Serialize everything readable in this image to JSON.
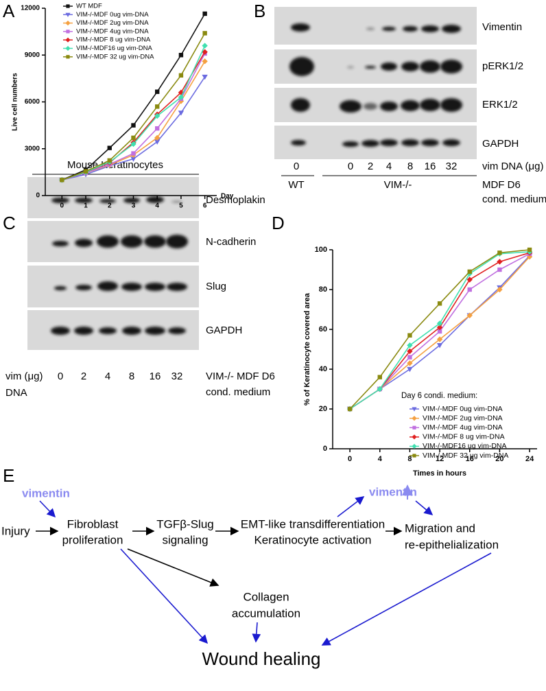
{
  "panel_labels": [
    "A",
    "B",
    "C",
    "D",
    "E"
  ],
  "chart_data": [
    {
      "type": "line",
      "ylabel": "Live cell numbers",
      "xlabel": "Day",
      "x": [
        0,
        1,
        2,
        3,
        4,
        5,
        6
      ],
      "xlim": [
        -0.7,
        6.5
      ],
      "xticks": [
        0,
        1,
        2,
        3,
        4,
        5,
        6
      ],
      "ylim": [
        0,
        12000
      ],
      "yticks": [
        0,
        3000,
        6000,
        9000,
        12000
      ],
      "series": [
        {
          "name": "WT MDF",
          "color": "#111111",
          "marker": "square",
          "values": [
            1000,
            1650,
            3050,
            4500,
            6650,
            9000,
            11650
          ]
        },
        {
          "name": "VIM-/-MDF 0ug vim-DNA",
          "color": "#6b6be0",
          "marker": "triangle-down",
          "values": [
            1000,
            1350,
            1900,
            2350,
            3450,
            5300,
            7600
          ]
        },
        {
          "name": "VIM-/-MDF 2ug vim-DNA",
          "color": "#f5a040",
          "marker": "diamond",
          "values": [
            1000,
            1450,
            1950,
            2600,
            3700,
            6050,
            8600
          ]
        },
        {
          "name": "VIM-/-MDF 4ug vim-DNA",
          "color": "#c070e0",
          "marker": "square",
          "values": [
            1000,
            1450,
            2000,
            2700,
            4300,
            6200,
            9100
          ]
        },
        {
          "name": "VIM-/-MDF 8 ug vim-DNA",
          "color": "#e02020",
          "marker": "diamond",
          "values": [
            1000,
            1500,
            2100,
            3400,
            5200,
            6600,
            9200
          ]
        },
        {
          "name": "VIM-/-MDF16 ug vim-DNA",
          "color": "#40e0b0",
          "marker": "diamond",
          "values": [
            1000,
            1500,
            2150,
            3300,
            5100,
            6300,
            9600
          ]
        },
        {
          "name": "VIM-/-MDF 32 ug vim-DNA",
          "color": "#8a8a10",
          "marker": "square",
          "values": [
            1000,
            1550,
            2250,
            3700,
            5700,
            7700,
            10400
          ]
        }
      ]
    },
    {
      "type": "line",
      "ylabel": "% of Keratinocyte covered area",
      "xlabel": "Times in hours",
      "legend_title": "Day 6 condi. medium:",
      "x": [
        0,
        4,
        8,
        12,
        16,
        20,
        24
      ],
      "xlim": [
        -2.3,
        25
      ],
      "xticks": [
        0,
        4,
        8,
        12,
        16,
        20,
        24
      ],
      "ylim": [
        0,
        100
      ],
      "yticks": [
        0,
        20,
        40,
        60,
        80,
        100
      ],
      "series": [
        {
          "name": "VIM-/-MDF 0ug vim-DNA",
          "color": "#6b6be0",
          "marker": "triangle-down",
          "values": [
            20,
            30,
            40,
            52,
            67,
            81,
            97
          ]
        },
        {
          "name": "VIM-/-MDF 2ug vim-DNA",
          "color": "#f5a040",
          "marker": "diamond",
          "values": [
            20,
            30,
            43,
            55,
            67,
            80,
            96.5
          ]
        },
        {
          "name": "VIM-/-MDF 4ug vim-DNA",
          "color": "#c070e0",
          "marker": "square",
          "values": [
            20,
            30,
            46,
            59,
            80,
            90,
            98
          ]
        },
        {
          "name": "VIM-/-MDF 8 ug vim-DNA",
          "color": "#e02020",
          "marker": "diamond",
          "values": [
            20,
            30,
            49,
            61,
            85,
            94,
            98.5
          ]
        },
        {
          "name": "VIM-/-MDF16 ug vim-DNA",
          "color": "#40e0b0",
          "marker": "diamond",
          "values": [
            20,
            30,
            52,
            63,
            88,
            98,
            99
          ]
        },
        {
          "name": "VIM-/-MDF 32 ug vim-DNA",
          "color": "#8a8a10",
          "marker": "square",
          "values": [
            20,
            36,
            57,
            73,
            89,
            98.5,
            100
          ]
        }
      ]
    }
  ],
  "blot_b": {
    "rows": [
      "Vimentin",
      "pERK1/2",
      "ERK1/2",
      "GAPDH"
    ],
    "lanes": [
      "0",
      "0",
      "2",
      "4",
      "8",
      "16",
      "32"
    ],
    "lane_title": "vim DNA (μg)",
    "groups": [
      "WT",
      "VIM-/-"
    ],
    "condition": [
      "MDF D6",
      "cond. medium"
    ]
  },
  "blot_c": {
    "title": "Mouse Keratinocytes",
    "rows": [
      "Desmoplakin",
      "N-cadherin",
      "Slug",
      "GAPDH"
    ],
    "lane_title": [
      "vim (μg)",
      "DNA"
    ],
    "lanes": [
      "0",
      "2",
      "4",
      "8",
      "16",
      "32"
    ],
    "condition": [
      "VIM-/- MDF D6",
      "cond. medium"
    ]
  },
  "diagram_e": {
    "vimentin_in": "vimentin",
    "injury": "Injury",
    "fibroblast": [
      "Fibroblast",
      "proliferation"
    ],
    "tgf": [
      "TGFβ-Slug",
      "signaling"
    ],
    "emt": [
      "EMT-like transdifferentiation",
      "Keratinocyte activation"
    ],
    "vimentin_up": "vimentin",
    "migration": [
      "Migration and",
      "re-epithelialization"
    ],
    "collagen": [
      "Collagen",
      "accumulation"
    ],
    "wound": "Wound healing"
  }
}
